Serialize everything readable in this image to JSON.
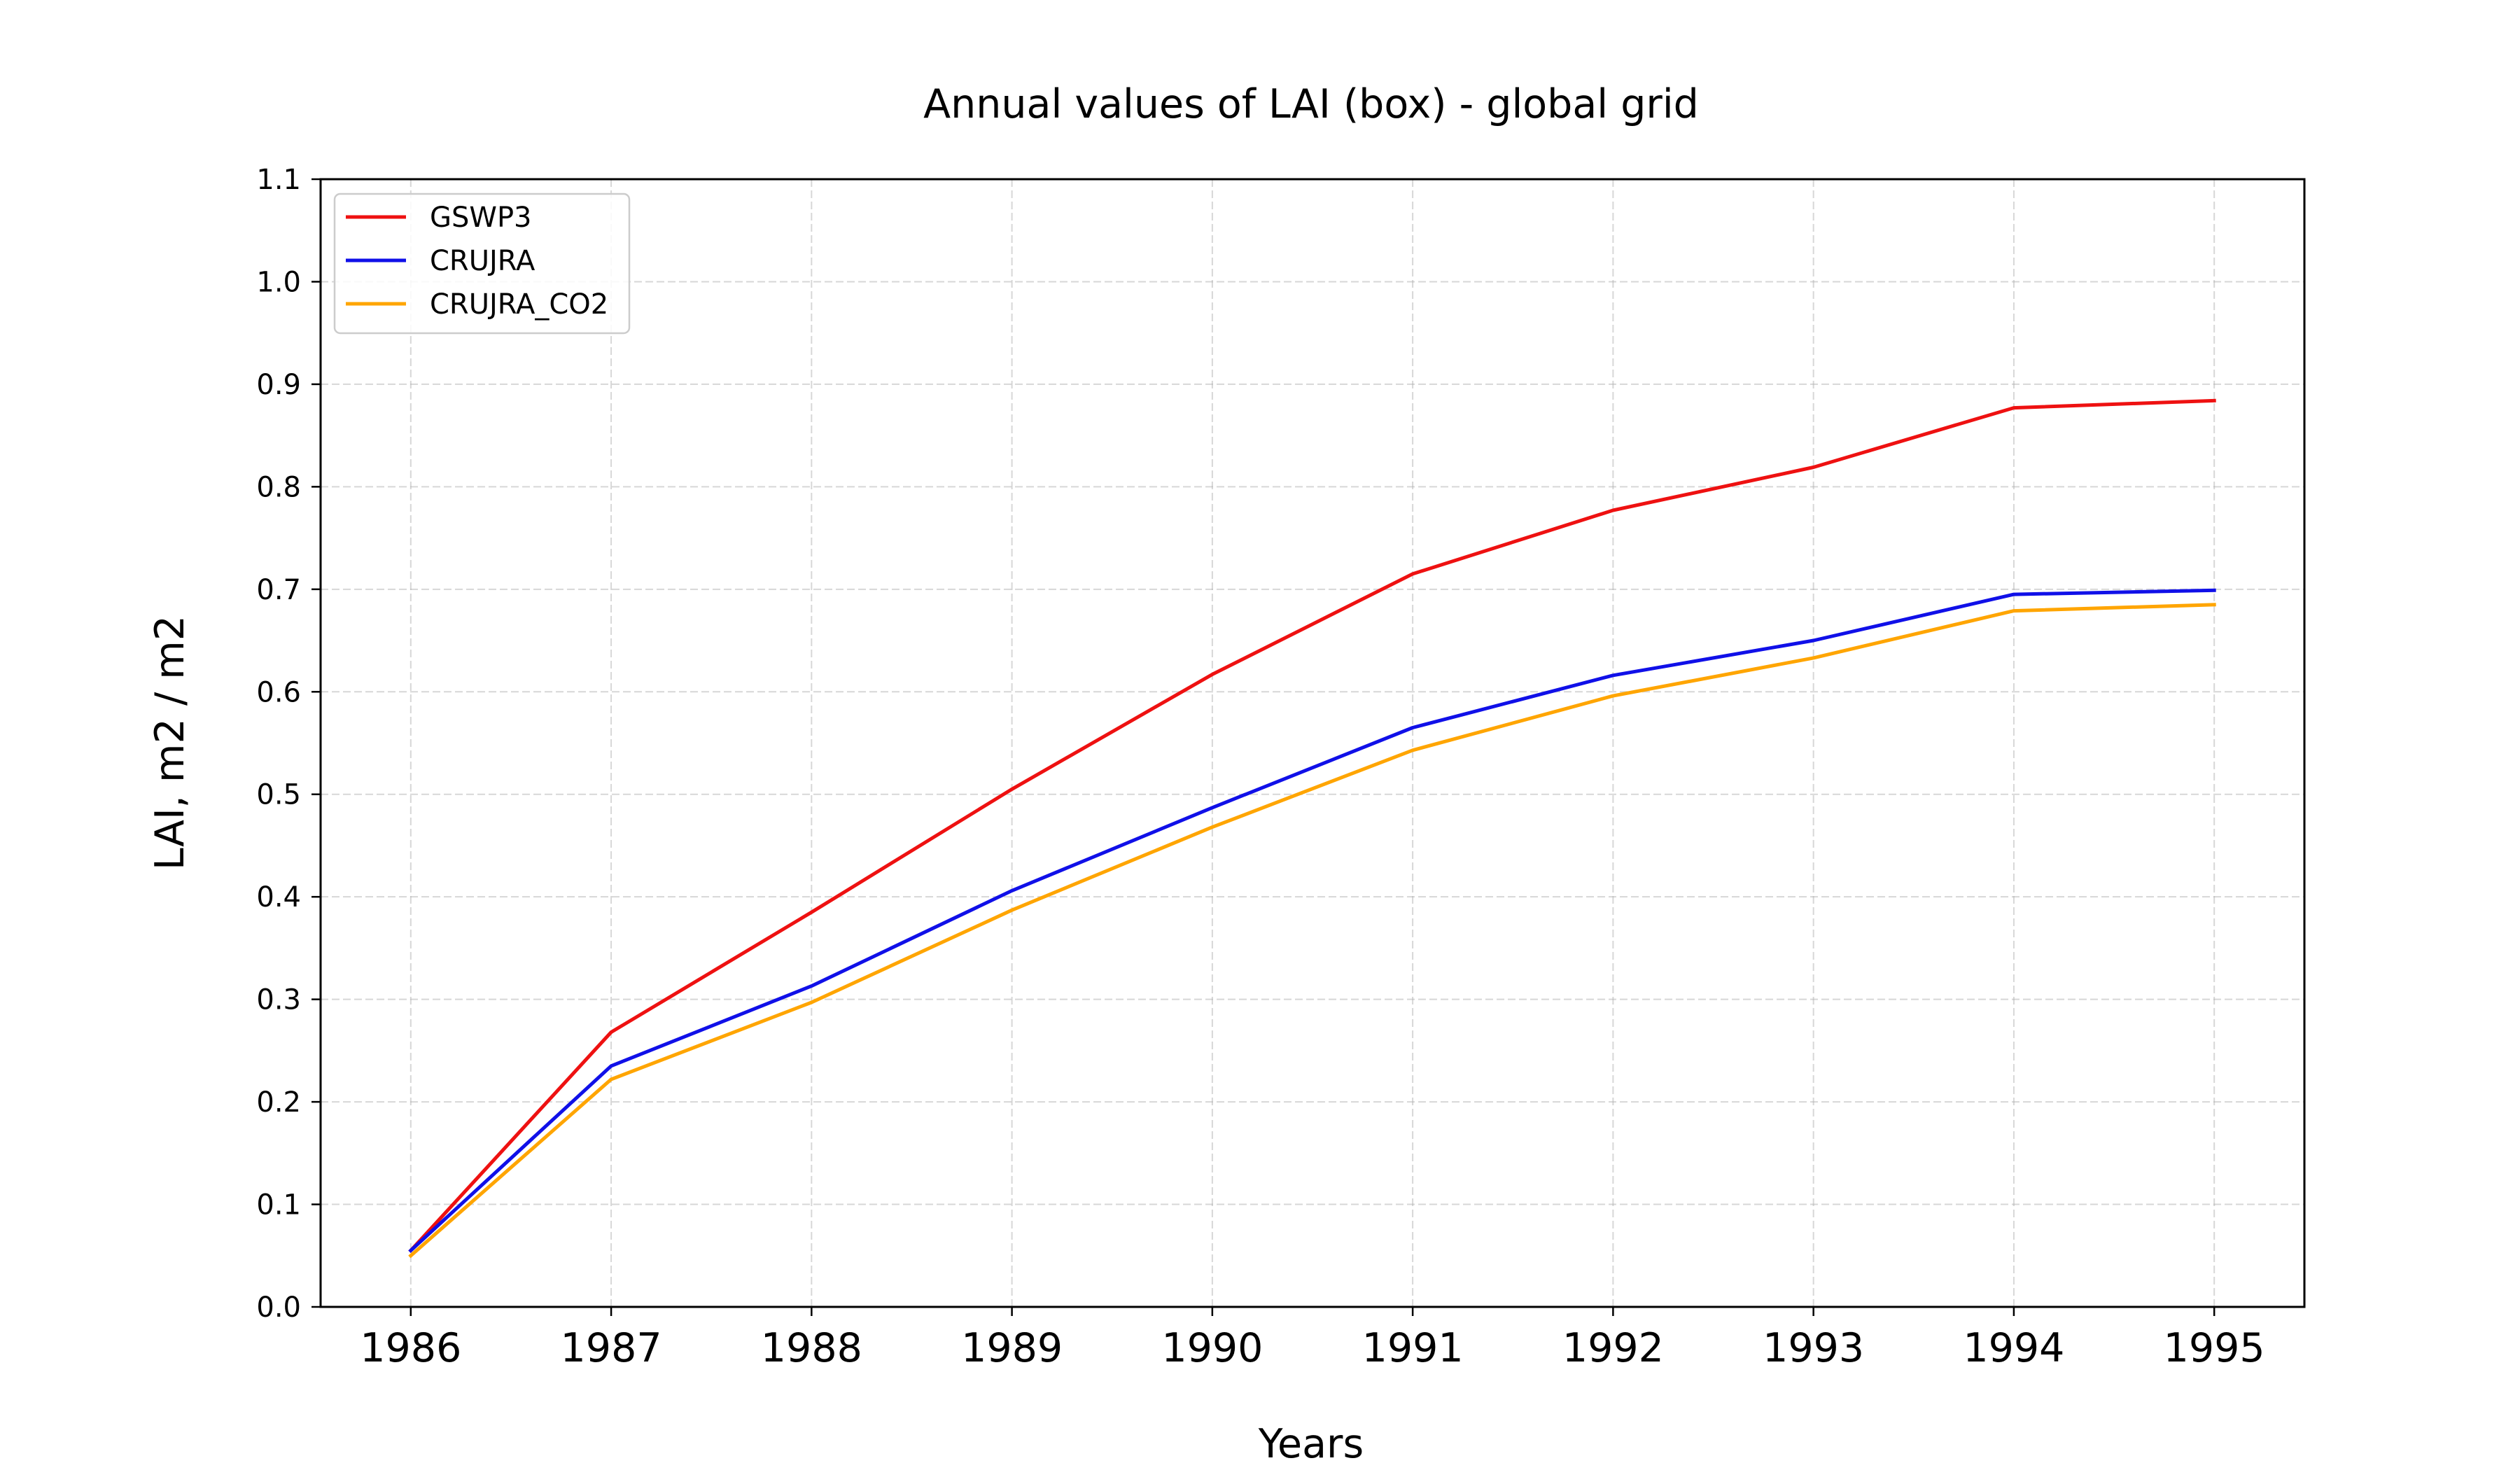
{
  "chart_data": {
    "type": "line",
    "title": "Annual values of LAI (box) - global grid",
    "xlabel": "Years",
    "ylabel": "LAI, m2 / m2",
    "x": [
      1986,
      1987,
      1988,
      1989,
      1990,
      1991,
      1992,
      1993,
      1994,
      1995
    ],
    "x_tick_labels": [
      "1986",
      "1987",
      "1988",
      "1989",
      "1990",
      "1991",
      "1992",
      "1993",
      "1994",
      "1995"
    ],
    "y_tick_labels": [
      "0.0",
      "0.1",
      "0.2",
      "0.3",
      "0.4",
      "0.5",
      "0.6",
      "0.7",
      "0.8",
      "0.9",
      "1.0",
      "1.1"
    ],
    "ylim": [
      0.0,
      1.1
    ],
    "xlim": [
      1985.55,
      1995.45
    ],
    "grid": true,
    "legend_position": "top-left",
    "series": [
      {
        "name": "GSWP3",
        "color": "#ee1111",
        "values": [
          0.055,
          0.268,
          0.385,
          0.505,
          0.617,
          0.715,
          0.777,
          0.819,
          0.877,
          0.884
        ]
      },
      {
        "name": "CRUJRA",
        "color": "#1010e8",
        "values": [
          0.055,
          0.235,
          0.313,
          0.406,
          0.487,
          0.565,
          0.616,
          0.65,
          0.695,
          0.699
        ]
      },
      {
        "name": "CRUJRA_CO2",
        "color": "#ffa500",
        "values": [
          0.05,
          0.222,
          0.297,
          0.387,
          0.468,
          0.543,
          0.596,
          0.633,
          0.679,
          0.685
        ]
      }
    ]
  }
}
